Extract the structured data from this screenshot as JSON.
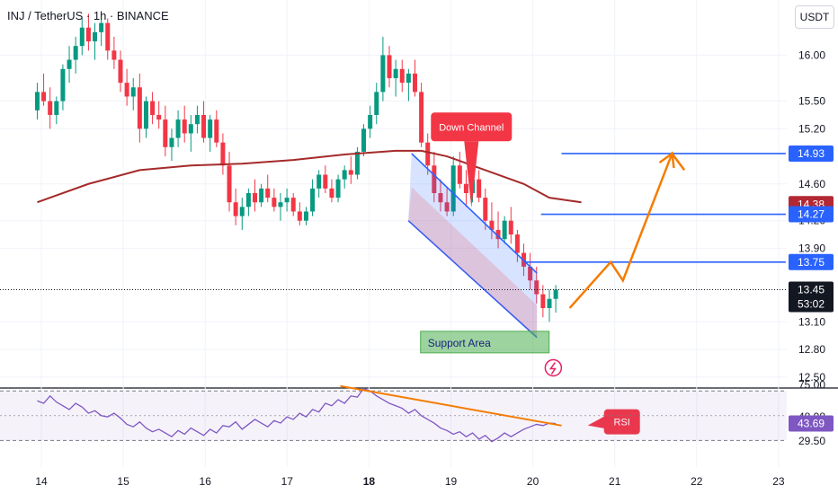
{
  "title": "INJ / TetherUS · 1h · BINANCE",
  "unit_button": "USDT",
  "chart_data": {
    "type": "candlestick",
    "price_axis": {
      "ticks": [
        "16.00",
        "15.50",
        "15.20",
        "14.60",
        "14.20",
        "13.90",
        "13.10",
        "12.80",
        "12.50"
      ],
      "ylim": [
        12.4,
        16.6
      ]
    },
    "time_axis": {
      "ticks": [
        "14",
        "15",
        "16",
        "17",
        "18",
        "19",
        "20",
        "21",
        "22",
        "23"
      ],
      "bold_tick": "18"
    },
    "candles": [
      [
        15.4,
        15.7,
        15.3,
        15.6
      ],
      [
        15.6,
        15.8,
        15.45,
        15.5
      ],
      [
        15.5,
        15.65,
        15.2,
        15.35
      ],
      [
        15.35,
        15.55,
        15.25,
        15.5
      ],
      [
        15.5,
        15.9,
        15.4,
        15.85
      ],
      [
        15.85,
        16.1,
        15.7,
        15.95
      ],
      [
        15.95,
        16.2,
        15.8,
        16.1
      ],
      [
        16.1,
        16.4,
        16.0,
        16.3
      ],
      [
        16.3,
        16.45,
        16.05,
        16.15
      ],
      [
        16.15,
        16.35,
        15.95,
        16.25
      ],
      [
        16.25,
        16.4,
        16.1,
        16.35
      ],
      [
        16.35,
        16.4,
        15.95,
        16.05
      ],
      [
        16.05,
        16.2,
        15.85,
        15.95
      ],
      [
        15.95,
        16.05,
        15.6,
        15.7
      ],
      [
        15.7,
        15.85,
        15.45,
        15.55
      ],
      [
        15.55,
        15.75,
        15.4,
        15.65
      ],
      [
        15.65,
        15.8,
        15.05,
        15.2
      ],
      [
        15.2,
        15.55,
        15.1,
        15.5
      ],
      [
        15.5,
        15.6,
        15.25,
        15.35
      ],
      [
        15.35,
        15.5,
        15.2,
        15.3
      ],
      [
        15.3,
        15.45,
        14.9,
        15.0
      ],
      [
        15.0,
        15.2,
        14.85,
        15.1
      ],
      [
        15.1,
        15.4,
        15.0,
        15.3
      ],
      [
        15.3,
        15.45,
        15.05,
        15.15
      ],
      [
        15.15,
        15.35,
        14.95,
        15.25
      ],
      [
        15.25,
        15.45,
        15.15,
        15.35
      ],
      [
        15.35,
        15.5,
        15.05,
        15.1
      ],
      [
        15.1,
        15.35,
        14.95,
        15.3
      ],
      [
        15.3,
        15.4,
        15.0,
        15.05
      ],
      [
        15.05,
        15.15,
        14.7,
        14.8
      ],
      [
        14.8,
        14.95,
        14.3,
        14.4
      ],
      [
        14.4,
        14.55,
        14.15,
        14.25
      ],
      [
        14.25,
        14.45,
        14.1,
        14.35
      ],
      [
        14.35,
        14.55,
        14.25,
        14.5
      ],
      [
        14.5,
        14.65,
        14.3,
        14.4
      ],
      [
        14.4,
        14.6,
        14.35,
        14.55
      ],
      [
        14.55,
        14.7,
        14.4,
        14.45
      ],
      [
        14.45,
        14.55,
        14.3,
        14.35
      ],
      [
        14.35,
        14.5,
        14.2,
        14.4
      ],
      [
        14.4,
        14.55,
        14.3,
        14.45
      ],
      [
        14.45,
        14.5,
        14.25,
        14.3
      ],
      [
        14.3,
        14.4,
        14.15,
        14.2
      ],
      [
        14.2,
        14.35,
        14.15,
        14.3
      ],
      [
        14.3,
        14.65,
        14.25,
        14.55
      ],
      [
        14.55,
        14.75,
        14.45,
        14.7
      ],
      [
        14.7,
        14.8,
        14.5,
        14.55
      ],
      [
        14.55,
        14.65,
        14.4,
        14.45
      ],
      [
        14.45,
        14.7,
        14.4,
        14.65
      ],
      [
        14.65,
        14.8,
        14.55,
        14.75
      ],
      [
        14.75,
        14.9,
        14.6,
        14.7
      ],
      [
        14.7,
        15.0,
        14.65,
        14.95
      ],
      [
        14.95,
        15.25,
        14.9,
        15.2
      ],
      [
        15.2,
        15.45,
        15.1,
        15.35
      ],
      [
        15.35,
        15.7,
        15.25,
        15.6
      ],
      [
        15.6,
        16.2,
        15.5,
        16.0
      ],
      [
        16.0,
        16.1,
        15.65,
        15.75
      ],
      [
        15.75,
        15.95,
        15.55,
        15.85
      ],
      [
        15.85,
        15.95,
        15.6,
        15.7
      ],
      [
        15.7,
        15.85,
        15.5,
        15.8
      ],
      [
        15.8,
        15.95,
        15.55,
        15.6
      ],
      [
        15.6,
        15.7,
        15.0,
        15.05
      ],
      [
        15.05,
        15.15,
        14.7,
        14.8
      ],
      [
        14.8,
        14.95,
        14.4,
        14.5
      ],
      [
        14.5,
        14.65,
        14.3,
        14.4
      ],
      [
        14.4,
        14.55,
        14.25,
        14.3
      ],
      [
        14.3,
        14.9,
        14.25,
        14.8
      ],
      [
        14.8,
        14.95,
        14.55,
        14.6
      ],
      [
        14.6,
        14.75,
        14.35,
        14.5
      ],
      [
        14.5,
        14.7,
        14.4,
        14.65
      ],
      [
        14.65,
        14.75,
        14.4,
        14.45
      ],
      [
        14.45,
        14.55,
        14.1,
        14.2
      ],
      [
        14.2,
        14.4,
        14.0,
        14.1
      ],
      [
        14.1,
        14.3,
        13.9,
        14.0
      ],
      [
        14.0,
        14.25,
        13.95,
        14.2
      ],
      [
        14.2,
        14.35,
        13.95,
        14.05
      ],
      [
        14.05,
        14.1,
        13.75,
        13.85
      ],
      [
        13.85,
        13.95,
        13.6,
        13.7
      ],
      [
        13.7,
        13.85,
        13.45,
        13.55
      ],
      [
        13.55,
        13.7,
        13.3,
        13.4
      ],
      [
        13.4,
        13.5,
        13.15,
        13.25
      ],
      [
        13.25,
        13.45,
        13.1,
        13.35
      ],
      [
        13.35,
        13.5,
        13.2,
        13.45
      ]
    ],
    "moving_average": [
      [
        0,
        14.4
      ],
      [
        8,
        14.6
      ],
      [
        16,
        14.75
      ],
      [
        24,
        14.8
      ],
      [
        32,
        14.82
      ],
      [
        40,
        14.86
      ],
      [
        48,
        14.92
      ],
      [
        56,
        14.96
      ],
      [
        60,
        14.96
      ],
      [
        64,
        14.9
      ],
      [
        68,
        14.8
      ],
      [
        72,
        14.7
      ],
      [
        76,
        14.6
      ],
      [
        80,
        14.45
      ],
      [
        85,
        14.4
      ]
    ],
    "price_labels": [
      {
        "value": 14.93,
        "text": "14.93",
        "color": "#2962ff"
      },
      {
        "value": 14.38,
        "text": "14.38",
        "color": "#b22833"
      },
      {
        "value": 14.27,
        "text": "14.27",
        "color": "#2962ff"
      },
      {
        "value": 13.75,
        "text": "13.75",
        "color": "#2962ff"
      },
      {
        "value": 13.45,
        "text": "13.45",
        "color": "#131722",
        "sub": "53:02"
      }
    ],
    "horizontal_lines": [
      {
        "value": 14.93,
        "from": 20.35,
        "to": 23.0
      },
      {
        "value": 14.27,
        "from": 20.1,
        "to": 23.0
      },
      {
        "value": 13.75,
        "from": 19.9,
        "to": 23.0
      }
    ],
    "projection_path": [
      [
        20.45,
        13.25
      ],
      [
        20.95,
        13.75
      ],
      [
        21.1,
        13.55
      ],
      [
        21.7,
        14.93
      ],
      [
        21.85,
        14.75
      ]
    ],
    "channel": {
      "upper": [
        [
          18.52,
          14.93
        ],
        [
          20.05,
          13.63
        ]
      ],
      "lower": [
        [
          18.48,
          14.2
        ],
        [
          20.05,
          12.93
        ]
      ]
    },
    "annotations": [
      {
        "text": "Down Channel",
        "x": 19.25,
        "value": 15.22,
        "color": "#f23645"
      },
      {
        "text": "Support Area",
        "x": 19.2,
        "value": 12.88,
        "color": "#4caf50"
      },
      {
        "text": "RSI",
        "x": 21.0,
        "value": 45.0,
        "color": "#f23645",
        "pane": "rsi"
      }
    ],
    "rsi": {
      "ticks": [
        "75.00",
        "48.98",
        "29.50"
      ],
      "current": "43.69",
      "upper_band": 70,
      "lower_band": 30,
      "values": [
        62,
        60,
        66,
        61,
        58,
        55,
        60,
        57,
        52,
        54,
        50,
        49,
        52,
        48,
        43,
        41,
        45,
        40,
        37,
        39,
        36,
        33,
        38,
        35,
        40,
        37,
        34,
        39,
        36,
        42,
        41,
        45,
        39,
        43,
        47,
        44,
        41,
        46,
        44,
        49,
        47,
        52,
        49,
        55,
        53,
        60,
        58,
        63,
        60,
        66,
        65,
        72,
        70,
        66,
        63,
        60,
        58,
        56,
        52,
        55,
        50,
        47,
        44,
        40,
        38,
        35,
        37,
        33,
        36,
        31,
        34,
        29,
        32,
        36,
        33,
        36,
        39,
        41,
        43,
        42,
        44,
        43.69
      ],
      "trendline": [
        [
          17.65,
          74.0
        ],
        [
          20.35,
          42.0
        ]
      ]
    }
  }
}
